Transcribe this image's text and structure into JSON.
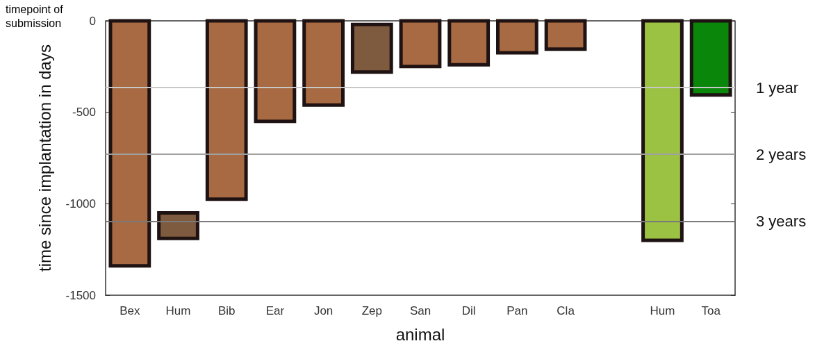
{
  "chart_data": {
    "type": "bar",
    "xlabel": "animal",
    "ylabel": "time since implantation in days",
    "annotations": [
      "timepoint of submission"
    ],
    "categories": [
      "Bex",
      "Hum",
      "Bib",
      "Ear",
      "Jon",
      "Zep",
      "San",
      "Dil",
      "Pan",
      "Cla",
      null,
      "Hum",
      "Toa"
    ],
    "values": [
      -1340,
      -140,
      -975,
      -550,
      -460,
      -260,
      -250,
      -240,
      -175,
      -155,
      null,
      -1200,
      -405
    ],
    "base": [
      0,
      -1050,
      0,
      0,
      0,
      -20,
      0,
      0,
      0,
      0,
      null,
      0,
      0
    ],
    "colors": [
      "#a86a42",
      "#7e5a3e",
      "#a86a42",
      "#a86a42",
      "#a86a42",
      "#7e5a3e",
      "#a86a42",
      "#a86a42",
      "#a86a42",
      "#a86a42",
      null,
      "#9cc244",
      "#0a870a"
    ],
    "ylim": [
      -1500,
      0
    ],
    "yticks": [
      -1500,
      -1000,
      -500,
      0
    ],
    "ref_lines": [
      {
        "axis": "y",
        "value": -365,
        "label": "1 year",
        "color": "#c8c8c8"
      },
      {
        "axis": "y",
        "value": -730,
        "label": "2 years",
        "color": "#a0a0a0"
      },
      {
        "axis": "y",
        "value": -1095,
        "label": "3 years",
        "color": "#7a7a7a"
      }
    ],
    "grid": false,
    "legend": false
  }
}
